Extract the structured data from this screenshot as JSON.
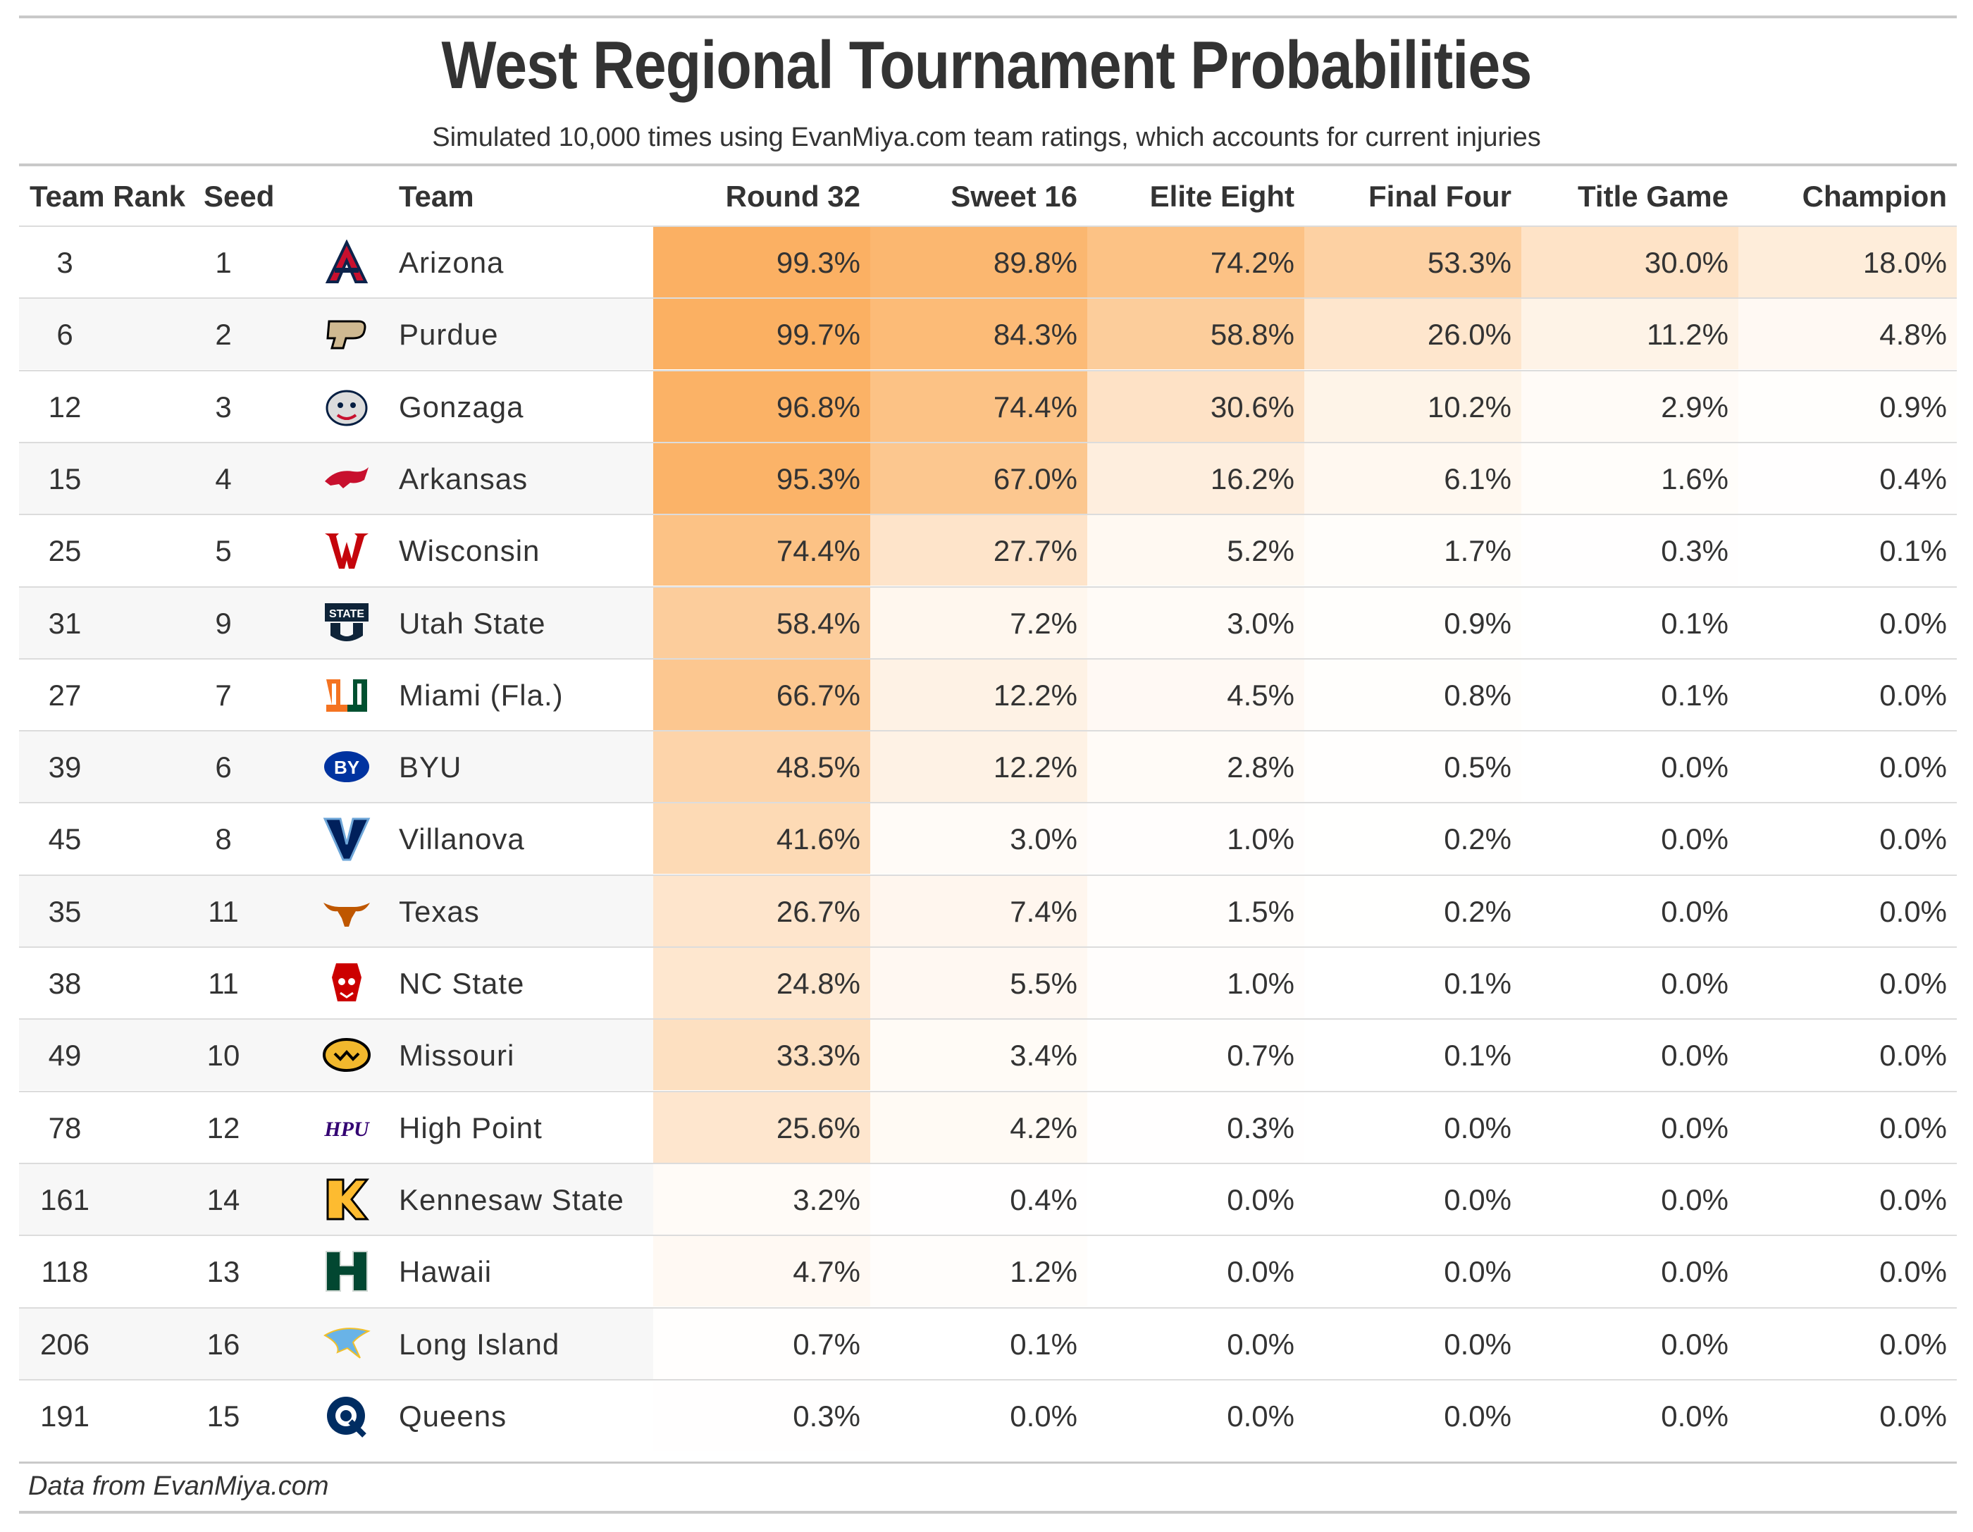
{
  "chart_data": {
    "type": "table",
    "title": "West Regional Tournament Probabilities",
    "subtitle": "Simulated 10,000 times using EvanMiya.com team ratings, which accounts for current injuries",
    "columns": [
      "Team Rank",
      "Seed",
      "Team",
      "Round 32",
      "Sweet 16",
      "Elite Eight",
      "Final Four",
      "Title Game",
      "Champion"
    ],
    "rows": [
      {
        "rank": "3",
        "seed": "1",
        "team": "Arizona",
        "logo": "arizona-logo",
        "probs": [
          "99.3%",
          "89.8%",
          "74.2%",
          "53.3%",
          "30.0%",
          "18.0%"
        ]
      },
      {
        "rank": "6",
        "seed": "2",
        "team": "Purdue",
        "logo": "purdue-logo",
        "probs": [
          "99.7%",
          "84.3%",
          "58.8%",
          "26.0%",
          "11.2%",
          "4.8%"
        ]
      },
      {
        "rank": "12",
        "seed": "3",
        "team": "Gonzaga",
        "logo": "gonzaga-logo",
        "probs": [
          "96.8%",
          "74.4%",
          "30.6%",
          "10.2%",
          "2.9%",
          "0.9%"
        ]
      },
      {
        "rank": "15",
        "seed": "4",
        "team": "Arkansas",
        "logo": "arkansas-logo",
        "probs": [
          "95.3%",
          "67.0%",
          "16.2%",
          "6.1%",
          "1.6%",
          "0.4%"
        ]
      },
      {
        "rank": "25",
        "seed": "5",
        "team": "Wisconsin",
        "logo": "wisconsin-logo",
        "probs": [
          "74.4%",
          "27.7%",
          "5.2%",
          "1.7%",
          "0.3%",
          "0.1%"
        ]
      },
      {
        "rank": "31",
        "seed": "9",
        "team": "Utah State",
        "logo": "utah-state-logo",
        "probs": [
          "58.4%",
          "7.2%",
          "3.0%",
          "0.9%",
          "0.1%",
          "0.0%"
        ]
      },
      {
        "rank": "27",
        "seed": "7",
        "team": "Miami (Fla.)",
        "logo": "miami-logo",
        "probs": [
          "66.7%",
          "12.2%",
          "4.5%",
          "0.8%",
          "0.1%",
          "0.0%"
        ]
      },
      {
        "rank": "39",
        "seed": "6",
        "team": "BYU",
        "logo": "byu-logo",
        "probs": [
          "48.5%",
          "12.2%",
          "2.8%",
          "0.5%",
          "0.0%",
          "0.0%"
        ]
      },
      {
        "rank": "45",
        "seed": "8",
        "team": "Villanova",
        "logo": "villanova-logo",
        "probs": [
          "41.6%",
          "3.0%",
          "1.0%",
          "0.2%",
          "0.0%",
          "0.0%"
        ]
      },
      {
        "rank": "35",
        "seed": "11",
        "team": "Texas",
        "logo": "texas-logo",
        "probs": [
          "26.7%",
          "7.4%",
          "1.5%",
          "0.2%",
          "0.0%",
          "0.0%"
        ]
      },
      {
        "rank": "38",
        "seed": "11",
        "team": "NC State",
        "logo": "nc-state-logo",
        "probs": [
          "24.8%",
          "5.5%",
          "1.0%",
          "0.1%",
          "0.0%",
          "0.0%"
        ]
      },
      {
        "rank": "49",
        "seed": "10",
        "team": "Missouri",
        "logo": "missouri-logo",
        "probs": [
          "33.3%",
          "3.4%",
          "0.7%",
          "0.1%",
          "0.0%",
          "0.0%"
        ]
      },
      {
        "rank": "78",
        "seed": "12",
        "team": "High Point",
        "logo": "high-point-logo",
        "probs": [
          "25.6%",
          "4.2%",
          "0.3%",
          "0.0%",
          "0.0%",
          "0.0%"
        ]
      },
      {
        "rank": "161",
        "seed": "14",
        "team": "Kennesaw State",
        "logo": "kennesaw-state-logo",
        "probs": [
          "3.2%",
          "0.4%",
          "0.0%",
          "0.0%",
          "0.0%",
          "0.0%"
        ]
      },
      {
        "rank": "118",
        "seed": "13",
        "team": "Hawaii",
        "logo": "hawaii-logo",
        "probs": [
          "4.7%",
          "1.2%",
          "0.0%",
          "0.0%",
          "0.0%",
          "0.0%"
        ]
      },
      {
        "rank": "206",
        "seed": "16",
        "team": "Long Island",
        "logo": "long-island-logo",
        "probs": [
          "0.7%",
          "0.1%",
          "0.0%",
          "0.0%",
          "0.0%",
          "0.0%"
        ]
      },
      {
        "rank": "191",
        "seed": "15",
        "team": "Queens",
        "logo": "queens-logo",
        "probs": [
          "0.3%",
          "0.0%",
          "0.0%",
          "0.0%",
          "0.0%",
          "0.0%"
        ]
      }
    ],
    "heat_color_low": "#ffffff",
    "heat_color_high": "#fbb062",
    "stripe_color": "#f7f7f7"
  },
  "footnote": "Data from EvanMiya.com"
}
